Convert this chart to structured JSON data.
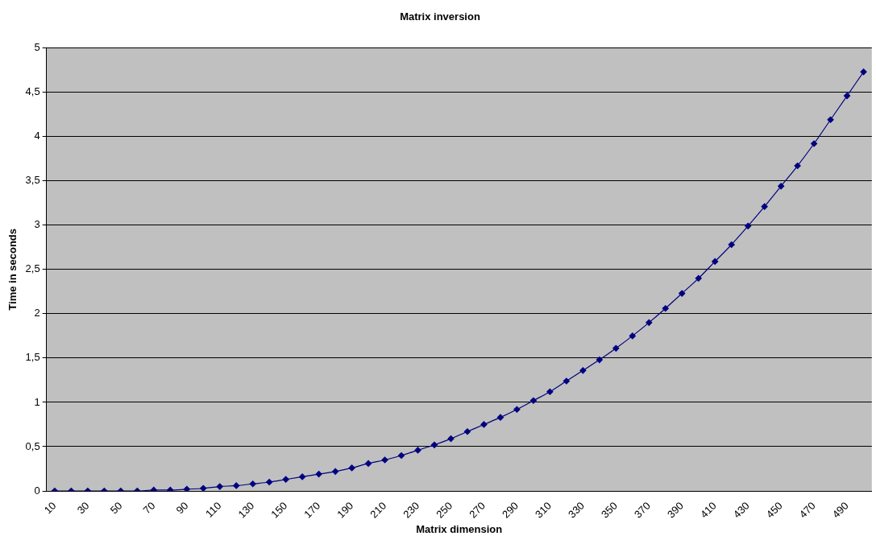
{
  "chart_data": {
    "type": "line",
    "title": "Matrix inversion",
    "xlabel": "Matrix dimension",
    "ylabel": "Time in seconds",
    "categories": [
      "10",
      null,
      "30",
      null,
      "50",
      null,
      "70",
      null,
      "90",
      null,
      "110",
      null,
      "130",
      null,
      "150",
      null,
      "170",
      null,
      "190",
      null,
      "210",
      null,
      "230",
      null,
      "250",
      null,
      "270",
      null,
      "290",
      null,
      "310",
      null,
      "330",
      null,
      "350",
      null,
      "370",
      null,
      "390",
      null,
      "410",
      null,
      "430",
      null,
      "450",
      null,
      "470",
      null,
      "490",
      null
    ],
    "series": [
      {
        "color": "#000080",
        "values": [
          0,
          0,
          0,
          0,
          0,
          0,
          0.01,
          0.01,
          0.02,
          0.03,
          0.05,
          0.06,
          0.08,
          0.1,
          0.13,
          0.16,
          0.19,
          0.22,
          0.26,
          0.31,
          0.35,
          0.4,
          0.46,
          0.52,
          0.59,
          0.67,
          0.75,
          0.83,
          0.92,
          1.02,
          1.12,
          1.24,
          1.36,
          1.48,
          1.61,
          1.75,
          1.9,
          2.06,
          2.23,
          2.4,
          2.59,
          2.78,
          2.99,
          3.21,
          3.44,
          3.67,
          3.92,
          4.19,
          4.46,
          4.73
        ]
      }
    ],
    "ylim": [
      0,
      5
    ],
    "yticks": [
      0,
      {
        "value": 0.5,
        "label": "0,5"
      },
      1,
      {
        "value": 1.5,
        "label": "1,5"
      },
      2,
      {
        "value": 2.5,
        "label": "2,5"
      },
      3,
      {
        "value": 3.5,
        "label": "3,5"
      },
      4,
      {
        "value": 4.5,
        "label": "4,5"
      },
      5
    ],
    "grid": "y",
    "legend": false,
    "marker": "diamond",
    "line_style": "solid"
  }
}
